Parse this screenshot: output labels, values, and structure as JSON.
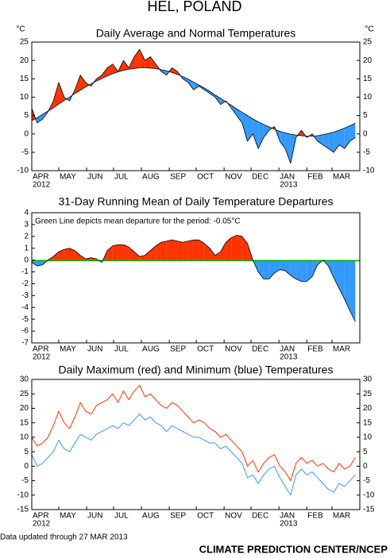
{
  "title": "HEL, POLAND",
  "footer": {
    "updated": "Data updated through 27 MAR 2013",
    "credit": "CLIMATE PREDICTION CENTER/NCEP"
  },
  "chart_data": [
    {
      "type": "area",
      "title": "Daily Average and Normal Temperatures",
      "units": "°C",
      "right_axis_labels": true,
      "fill_colors": {
        "above": "#ff3300",
        "below": "#3399ff"
      },
      "x": [
        0,
        6,
        12,
        18,
        24,
        30,
        36,
        42,
        48,
        54,
        60,
        66,
        72,
        78,
        84,
        90,
        96,
        102,
        108,
        114,
        120,
        126,
        132,
        138,
        144,
        150,
        156,
        162,
        168,
        174,
        180,
        186,
        192,
        198,
        204,
        210,
        216,
        222,
        228,
        234,
        240,
        246,
        252,
        258,
        264,
        270,
        276,
        282,
        288,
        294,
        300,
        306,
        312,
        318,
        324,
        330,
        336,
        342,
        348,
        354,
        360
      ],
      "xlim": [
        0,
        365
      ],
      "xticks": [
        {
          "value": 0,
          "label": "APR"
        },
        {
          "value": 30,
          "label": "MAY"
        },
        {
          "value": 61,
          "label": "JUN"
        },
        {
          "value": 91,
          "label": "JUL"
        },
        {
          "value": 122,
          "label": "AUG"
        },
        {
          "value": 153,
          "label": "SEP"
        },
        {
          "value": 183,
          "label": "OCT"
        },
        {
          "value": 214,
          "label": "NOV"
        },
        {
          "value": 244,
          "label": "DEC"
        },
        {
          "value": 275,
          "label": "JAN"
        },
        {
          "value": 306,
          "label": "FEB"
        },
        {
          "value": 334,
          "label": "MAR"
        }
      ],
      "year_labels": [
        {
          "value": 0,
          "label": "2012"
        },
        {
          "value": 275,
          "label": "2013"
        }
      ],
      "ylim": [
        -10,
        25
      ],
      "yticks": [
        -10,
        -5,
        0,
        5,
        10,
        15,
        20,
        25
      ],
      "series": [
        {
          "color": "#000000",
          "values": [
            7,
            3,
            4,
            6,
            9,
            14,
            10,
            9,
            12,
            16,
            14,
            13,
            15,
            16,
            18,
            19,
            17,
            20,
            18,
            21,
            23,
            20,
            21,
            19,
            17,
            16,
            18,
            17,
            15,
            14,
            12,
            13,
            12,
            11,
            10,
            8,
            9,
            7,
            5,
            3,
            -2,
            0,
            -4,
            -1,
            1,
            2,
            -2,
            -4,
            -8,
            -1,
            1,
            -1,
            0,
            -2,
            -3,
            -4,
            -5,
            -3,
            -4,
            -2,
            -1
          ]
        },
        {
          "color": "#000000",
          "values": [
            3.6,
            4.4,
            5.3,
            6.2,
            7.1,
            8.1,
            9.1,
            10.0,
            11.0,
            11.9,
            12.8,
            13.6,
            14.4,
            15.1,
            15.8,
            16.4,
            16.9,
            17.3,
            17.6,
            17.8,
            18.0,
            18.0,
            17.9,
            17.8,
            17.5,
            17.2,
            16.7,
            16.2,
            15.6,
            14.9,
            14.1,
            13.3,
            12.5,
            11.6,
            10.6,
            9.7,
            8.7,
            7.8,
            6.8,
            5.9,
            5.0,
            4.1,
            3.3,
            2.6,
            1.9,
            1.3,
            0.7,
            0.3,
            -0.1,
            -0.3,
            -0.5,
            -0.6,
            -0.6,
            -0.5,
            -0.2,
            0.1,
            0.5,
            1.0,
            1.6,
            2.2,
            2.9
          ]
        }
      ]
    },
    {
      "type": "area",
      "title": "31-Day Running Mean of Daily Temperature Departures",
      "right_axis_labels": false,
      "annotation": "Green Line depicts mean departure for the period: -0.05°C",
      "reference_line": {
        "value": -0.05,
        "color": "#00aa00"
      },
      "fill_colors": {
        "above": "#ff3300",
        "below": "#3399ff"
      },
      "x": [
        0,
        6,
        12,
        18,
        24,
        30,
        36,
        42,
        48,
        54,
        60,
        66,
        72,
        78,
        84,
        90,
        96,
        102,
        108,
        114,
        120,
        126,
        132,
        138,
        144,
        150,
        156,
        162,
        168,
        174,
        180,
        186,
        192,
        198,
        204,
        210,
        216,
        222,
        228,
        234,
        240,
        246,
        252,
        258,
        264,
        270,
        276,
        282,
        288,
        294,
        300,
        306,
        312,
        318,
        324,
        330,
        336,
        342,
        348,
        354,
        360
      ],
      "xlim": [
        0,
        365
      ],
      "xticks": [
        {
          "value": 0,
          "label": "APR"
        },
        {
          "value": 30,
          "label": "MAY"
        },
        {
          "value": 61,
          "label": "JUN"
        },
        {
          "value": 91,
          "label": "JUL"
        },
        {
          "value": 122,
          "label": "AUG"
        },
        {
          "value": 153,
          "label": "SEP"
        },
        {
          "value": 183,
          "label": "OCT"
        },
        {
          "value": 214,
          "label": "NOV"
        },
        {
          "value": 244,
          "label": "DEC"
        },
        {
          "value": 275,
          "label": "JAN"
        },
        {
          "value": 306,
          "label": "FEB"
        },
        {
          "value": 334,
          "label": "MAR"
        }
      ],
      "year_labels": [
        {
          "value": 0,
          "label": "2012"
        },
        {
          "value": 275,
          "label": "2013"
        }
      ],
      "ylim": [
        -7,
        4
      ],
      "yticks": [
        -7,
        -6,
        -5,
        -4,
        -3,
        -2,
        -1,
        0,
        1,
        2,
        3,
        4
      ],
      "series": [
        {
          "color": "#000000",
          "values": [
            -0.2,
            -0.5,
            -0.4,
            0,
            0.3,
            0.7,
            0.9,
            1.0,
            0.8,
            0.4,
            0.1,
            0.2,
            0.1,
            -0.2,
            0.8,
            1.2,
            1.3,
            1.3,
            1.1,
            0.7,
            0.3,
            0.4,
            0.8,
            1.2,
            1.5,
            1.6,
            1.7,
            1.6,
            1.5,
            1.6,
            1.7,
            1.7,
            1.4,
            1.0,
            0.4,
            0.7,
            1.5,
            1.9,
            2.1,
            2.0,
            1.4,
            0,
            -1.0,
            -1.6,
            -1.6,
            -1.1,
            -0.8,
            -0.9,
            -1.3,
            -1.6,
            -1.8,
            -1.8,
            -1.4,
            -0.4,
            0.0,
            -0.5,
            -1.5,
            -2.4,
            -3.3,
            -4.3,
            -5.2
          ]
        }
      ]
    },
    {
      "type": "line",
      "title": "Daily Maximum (red) and Minimum (blue) Temperatures",
      "right_axis_labels": true,
      "x": [
        0,
        6,
        12,
        18,
        24,
        30,
        36,
        42,
        48,
        54,
        60,
        66,
        72,
        78,
        84,
        90,
        96,
        102,
        108,
        114,
        120,
        126,
        132,
        138,
        144,
        150,
        156,
        162,
        168,
        174,
        180,
        186,
        192,
        198,
        204,
        210,
        216,
        222,
        228,
        234,
        240,
        246,
        252,
        258,
        264,
        270,
        276,
        282,
        288,
        294,
        300,
        306,
        312,
        318,
        324,
        330,
        336,
        342,
        348,
        354,
        360
      ],
      "xlim": [
        0,
        365
      ],
      "xticks": [
        {
          "value": 0,
          "label": "APR"
        },
        {
          "value": 30,
          "label": "MAY"
        },
        {
          "value": 61,
          "label": "JUN"
        },
        {
          "value": 91,
          "label": "JUL"
        },
        {
          "value": 122,
          "label": "AUG"
        },
        {
          "value": 153,
          "label": "SEP"
        },
        {
          "value": 183,
          "label": "OCT"
        },
        {
          "value": 214,
          "label": "NOV"
        },
        {
          "value": 244,
          "label": "DEC"
        },
        {
          "value": 275,
          "label": "JAN"
        },
        {
          "value": 306,
          "label": "FEB"
        },
        {
          "value": 334,
          "label": "MAR"
        }
      ],
      "year_labels": [
        {
          "value": 0,
          "label": "2012"
        },
        {
          "value": 275,
          "label": "2013"
        }
      ],
      "ylim": [
        -15,
        30
      ],
      "yticks": [
        -15,
        -10,
        -5,
        0,
        5,
        10,
        15,
        20,
        25,
        30
      ],
      "series": [
        {
          "color": "#ff3300",
          "values": [
            10,
            7,
            8,
            10,
            14,
            19,
            15,
            13,
            17,
            22,
            19,
            18,
            21,
            22,
            23,
            25,
            22,
            26,
            23,
            26,
            28,
            24,
            25,
            23,
            21,
            20,
            22,
            21,
            19,
            17,
            15,
            16,
            15,
            13,
            12,
            10,
            11,
            9,
            7,
            5,
            0,
            2,
            -2,
            1,
            3,
            4,
            0,
            -2,
            -5,
            1,
            3,
            1,
            2,
            0,
            1,
            -1,
            -2,
            1,
            -1,
            0,
            3
          ]
        },
        {
          "color": "#3399ff",
          "values": [
            4,
            0,
            1,
            3,
            5,
            9,
            6,
            5,
            8,
            11,
            10,
            9,
            11,
            12,
            13,
            14,
            13,
            15,
            14,
            16,
            18,
            16,
            17,
            15,
            14,
            12,
            14,
            13,
            12,
            11,
            10,
            10,
            9,
            8,
            8,
            6,
            7,
            5,
            3,
            1,
            -4,
            -3,
            -6,
            -3,
            -1,
            0,
            -4,
            -7,
            -10,
            -3,
            -1,
            -3,
            -2,
            -4,
            -6,
            -8,
            -9,
            -6,
            -7,
            -5,
            -3
          ]
        }
      ]
    }
  ]
}
